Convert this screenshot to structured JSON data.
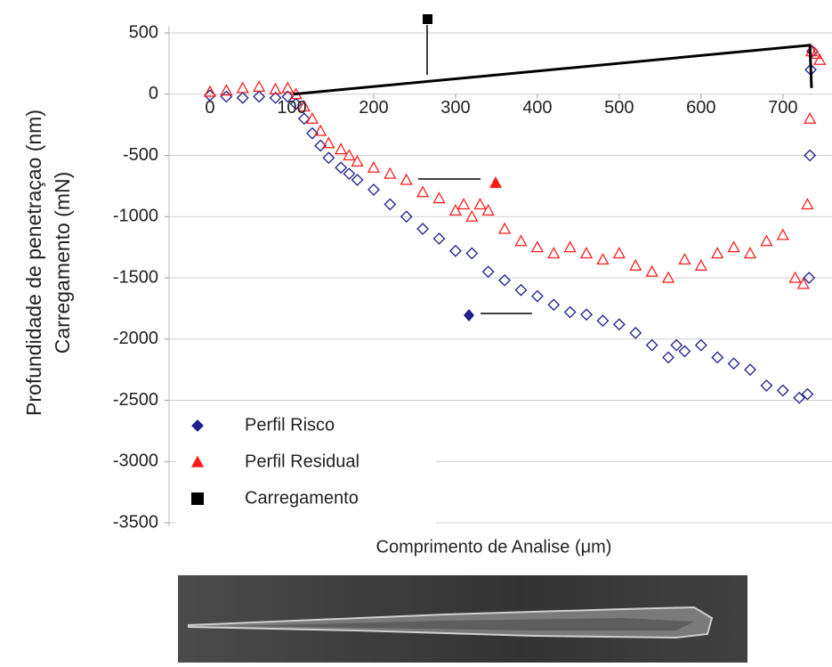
{
  "chart_data": {
    "type": "scatter",
    "y_label": "Profundidade de penetraçao (nm)",
    "y_label2": "Carregamento (mN)",
    "x_label": "Comprimento de Analise (μm)",
    "xlim": [
      -50,
      760
    ],
    "ylim": [
      -3500,
      500
    ],
    "xticks": [
      0,
      100,
      200,
      300,
      400,
      500,
      600,
      700
    ],
    "yticks": [
      500,
      0,
      -500,
      -1000,
      -1500,
      -2000,
      -2500,
      -3000,
      -3500
    ],
    "grid": true,
    "legend": "lower left",
    "series": [
      {
        "name": "Perfil Risco",
        "color": "#1f1f8f",
        "marker": "diamond",
        "x": [
          0,
          20,
          40,
          60,
          80,
          95,
          105,
          115,
          125,
          135,
          145,
          160,
          170,
          180,
          200,
          220,
          240,
          260,
          280,
          300,
          320,
          340,
          360,
          380,
          400,
          420,
          440,
          460,
          480,
          500,
          520,
          540,
          560,
          570,
          580,
          600,
          620,
          640,
          660,
          680,
          700,
          720,
          730,
          732,
          733,
          734,
          736
        ],
        "values": [
          -10,
          -20,
          -30,
          -20,
          -30,
          -20,
          -80,
          -200,
          -320,
          -420,
          -520,
          -600,
          -650,
          -700,
          -780,
          -900,
          -1000,
          -1100,
          -1180,
          -1280,
          -1300,
          -1450,
          -1520,
          -1600,
          -1650,
          -1720,
          -1780,
          -1800,
          -1850,
          -1880,
          -1950,
          -2050,
          -2150,
          -2050,
          -2100,
          -2050,
          -2150,
          -2200,
          -2250,
          -2380,
          -2420,
          -2480,
          -2450,
          -1500,
          -500,
          200,
          350
        ]
      },
      {
        "name": "Perfil Residual",
        "color": "#ff1a1a",
        "marker": "triangle",
        "x": [
          0,
          20,
          40,
          60,
          80,
          95,
          105,
          115,
          125,
          135,
          145,
          160,
          170,
          180,
          200,
          220,
          240,
          260,
          280,
          300,
          310,
          320,
          330,
          340,
          360,
          380,
          400,
          420,
          440,
          460,
          480,
          500,
          520,
          540,
          560,
          580,
          600,
          620,
          640,
          660,
          680,
          700,
          715,
          725,
          730,
          733,
          735,
          740,
          745
        ],
        "values": [
          20,
          30,
          50,
          60,
          40,
          50,
          0,
          -100,
          -200,
          -300,
          -400,
          -450,
          -500,
          -550,
          -600,
          -650,
          -700,
          -800,
          -850,
          -950,
          -900,
          -1000,
          -900,
          -950,
          -1100,
          -1200,
          -1250,
          -1300,
          -1250,
          -1300,
          -1350,
          -1300,
          -1400,
          -1450,
          -1500,
          -1350,
          -1400,
          -1300,
          -1250,
          -1300,
          -1200,
          -1150,
          -1500,
          -1550,
          -900,
          -200,
          350,
          330,
          280
        ]
      },
      {
        "name": "Carregamento",
        "color": "#000000",
        "marker": "line",
        "x": [
          102,
          733,
          735
        ],
        "values": [
          0,
          400,
          50
        ]
      }
    ]
  }
}
